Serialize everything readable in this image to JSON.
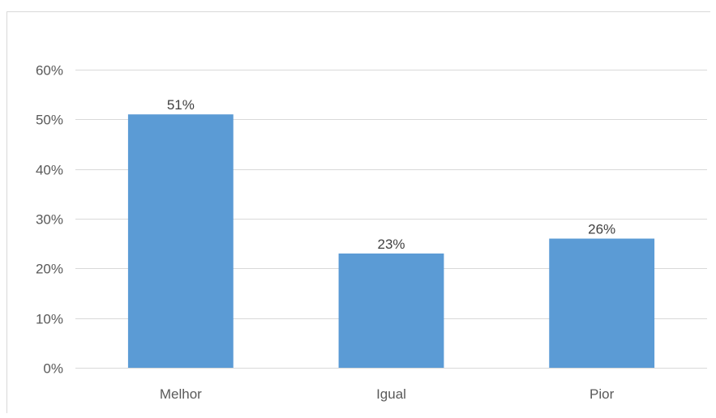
{
  "chart_data": {
    "type": "bar",
    "title": "",
    "xlabel": "",
    "ylabel": "",
    "categories": [
      "Melhor",
      "Igual",
      "Pior"
    ],
    "values": [
      51,
      23,
      26
    ],
    "data_labels": [
      "51%",
      "23%",
      "26%"
    ],
    "ylim": [
      0,
      60
    ],
    "yticks": [
      0,
      10,
      20,
      30,
      40,
      50,
      60
    ],
    "ytick_labels": [
      "0%",
      "10%",
      "20%",
      "30%",
      "40%",
      "50%",
      "60%"
    ],
    "grid": true,
    "legend": "none",
    "bar_color": "#5b9bd5",
    "grid_color": "#d9d9d9"
  }
}
